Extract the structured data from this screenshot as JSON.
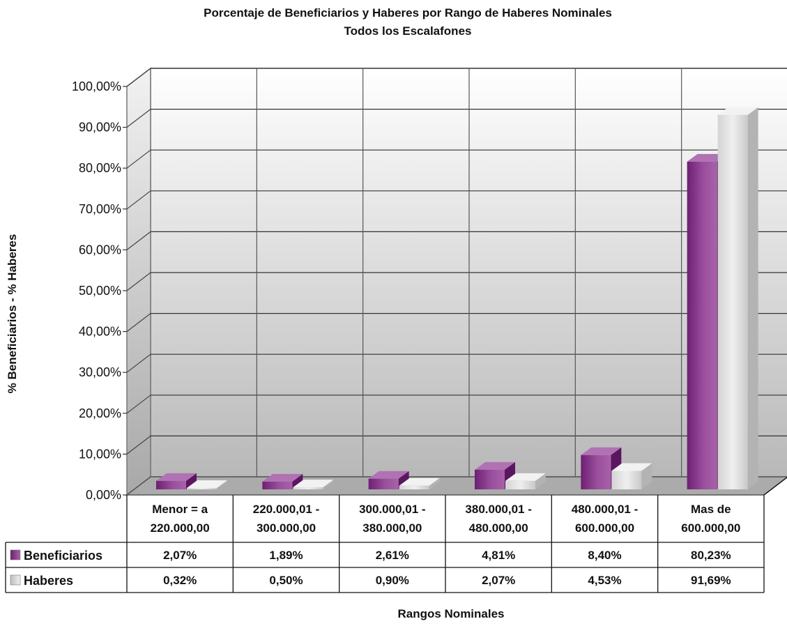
{
  "chart_data": {
    "type": "bar",
    "title": "Porcentaje de Beneficiarios y Haberes por Rango de Haberes Nominales",
    "subtitle": "Todos los Escalafones",
    "xlabel": "Rangos Nominales",
    "ylabel": "% Beneficiarios - % Haberes",
    "ylim": [
      0,
      100
    ],
    "yticks": [
      "0,00%",
      "10,00%",
      "20,00%",
      "30,00%",
      "40,00%",
      "50,00%",
      "60,00%",
      "70,00%",
      "80,00%",
      "90,00%",
      "100,00%"
    ],
    "grid": true,
    "categories": [
      [
        "Menor = a",
        "220.000,00"
      ],
      [
        "220.000,01 -",
        "300.000,00"
      ],
      [
        "300.000,01 -",
        "380.000,00"
      ],
      [
        "380.000,01 -",
        "480.000,00"
      ],
      [
        "480.000,01 -",
        "600.000,00"
      ],
      [
        "Mas de",
        "600.000,00"
      ]
    ],
    "series": [
      {
        "name": "Beneficiarios",
        "color": "#8B3A8E",
        "values": [
          2.07,
          1.89,
          2.61,
          4.81,
          8.4,
          80.23
        ],
        "labels": [
          "2,07%",
          "1,89%",
          "2,61%",
          "4,81%",
          "8,40%",
          "80,23%"
        ]
      },
      {
        "name": "Haberes",
        "color": "#CFCFCF",
        "values": [
          0.32,
          0.5,
          0.9,
          2.07,
          4.53,
          91.69
        ],
        "labels": [
          "0,32%",
          "0,50%",
          "0,90%",
          "2,07%",
          "4,53%",
          "91,69%"
        ]
      }
    ]
  }
}
